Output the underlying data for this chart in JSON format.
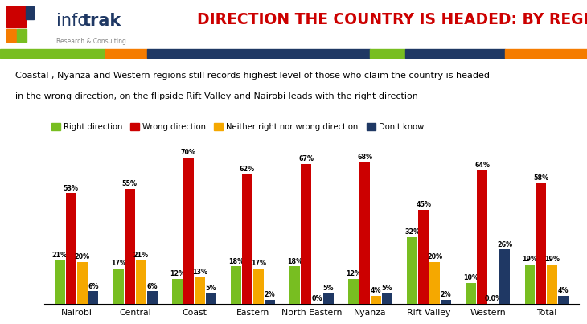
{
  "categories": [
    "Nairobi",
    "Central",
    "Coast",
    "Eastern",
    "North Eastern",
    "Nyanza",
    "Rift Valley",
    "Western",
    "Total"
  ],
  "series": {
    "Right direction": [
      21,
      17,
      12,
      18,
      18,
      12,
      32,
      10,
      19
    ],
    "Wrong direction": [
      53,
      55,
      70,
      62,
      67,
      68,
      45,
      64,
      58
    ],
    "Neither right nor wrong direction": [
      20,
      21,
      13,
      17,
      0,
      4,
      20,
      0,
      19
    ],
    "Dont know": [
      6,
      6,
      5,
      2,
      5,
      5,
      2,
      26,
      4
    ]
  },
  "neither_special": [
    20,
    21,
    13,
    17,
    "0%",
    4,
    20,
    "0.0%",
    19
  ],
  "series_labels": [
    "Right direction",
    "Wrong direction",
    "Neither right nor wrong direction",
    "Don't know"
  ],
  "series_colors": [
    "#78be21",
    "#cc0000",
    "#f5a800",
    "#1f3864"
  ],
  "title": "DIRECTION THE COUNTRY IS HEADED: BY REGION",
  "title_color": "#cc0000",
  "subtitle_line1": "Coastal , Nyanza and Western regions still records highest level of those who claim the country is headed",
  "subtitle_line2": "in the wrong direction, on the flipside Rift Valley and Nairobi leads with the right direction",
  "subtitle_bg": "#f5a800",
  "bar_width": 0.19,
  "ylim": [
    0,
    80
  ],
  "stripe_colors": [
    "#78be21",
    "#f57c00",
    "#1f3864",
    "#78be21",
    "#1f3864",
    "#f57c00"
  ],
  "stripe_widths": [
    0.18,
    0.07,
    0.38,
    0.06,
    0.17,
    0.14
  ]
}
